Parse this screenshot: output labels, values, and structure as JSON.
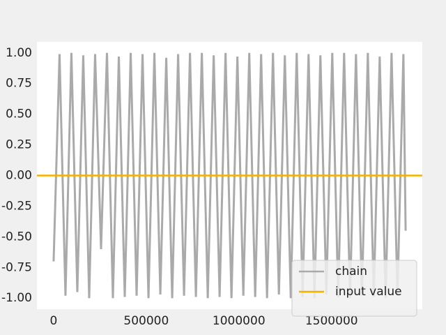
{
  "chart_data": {
    "type": "line",
    "series": [
      {
        "name": "chain",
        "color": "#aaaaaa",
        "x": [
          0,
          32000,
          64000,
          96000,
          128000,
          160000,
          192000,
          224000,
          256000,
          288000,
          320000,
          352000,
          384000,
          416000,
          448000,
          480000,
          512000,
          544000,
          576000,
          608000,
          640000,
          672000,
          704000,
          736000,
          768000,
          800000,
          832000,
          864000,
          896000,
          928000,
          960000,
          992000,
          1024000,
          1056000,
          1088000,
          1120000,
          1152000,
          1184000,
          1216000,
          1248000,
          1280000,
          1312000,
          1344000,
          1376000,
          1408000,
          1440000,
          1472000,
          1504000,
          1536000,
          1568000,
          1600000,
          1632000,
          1664000,
          1696000,
          1728000,
          1760000,
          1792000,
          1824000,
          1856000,
          1888000,
          1900000
        ],
        "values": [
          -0.7,
          0.99,
          -0.98,
          1.0,
          -0.95,
          0.98,
          -1.0,
          0.99,
          -0.6,
          1.0,
          -1.0,
          0.97,
          -0.99,
          1.0,
          -0.98,
          0.99,
          -1.0,
          1.0,
          -0.97,
          0.96,
          -1.0,
          0.99,
          -0.98,
          1.0,
          -0.99,
          1.0,
          -1.0,
          0.98,
          -0.99,
          1.0,
          -1.0,
          0.97,
          -0.98,
          1.0,
          -0.99,
          0.99,
          -1.0,
          1.0,
          -0.97,
          0.98,
          -1.0,
          1.0,
          -0.99,
          0.99,
          -1.0,
          0.98,
          -0.97,
          1.0,
          -0.99,
          1.0,
          -1.0,
          0.99,
          -0.98,
          1.0,
          -0.99,
          0.97,
          -1.0,
          1.0,
          -0.98,
          0.99,
          -0.45
        ]
      },
      {
        "name": "input value",
        "color": "#f5b000",
        "x": [
          -90000,
          1990000
        ],
        "values": [
          0,
          0
        ]
      }
    ],
    "xlim": [
      -90000,
      1990000
    ],
    "xticks": [
      0,
      500000,
      1000000,
      1500000
    ],
    "ylim": [
      -1.09,
      1.09
    ],
    "yticks": [
      {
        "value": -1,
        "label": "-1.00"
      },
      {
        "value": -0.75,
        "label": "-0.75"
      },
      {
        "value": -0.5,
        "label": "-0.50"
      },
      {
        "value": -0.25,
        "label": "-0.25"
      },
      {
        "value": 0,
        "label": "0.00"
      },
      {
        "value": 0.25,
        "label": "0.25"
      },
      {
        "value": 0.5,
        "label": "0.50"
      },
      {
        "value": 0.75,
        "label": "0.75"
      },
      {
        "value": 1,
        "label": "1.00"
      }
    ],
    "legend": "lower right"
  }
}
